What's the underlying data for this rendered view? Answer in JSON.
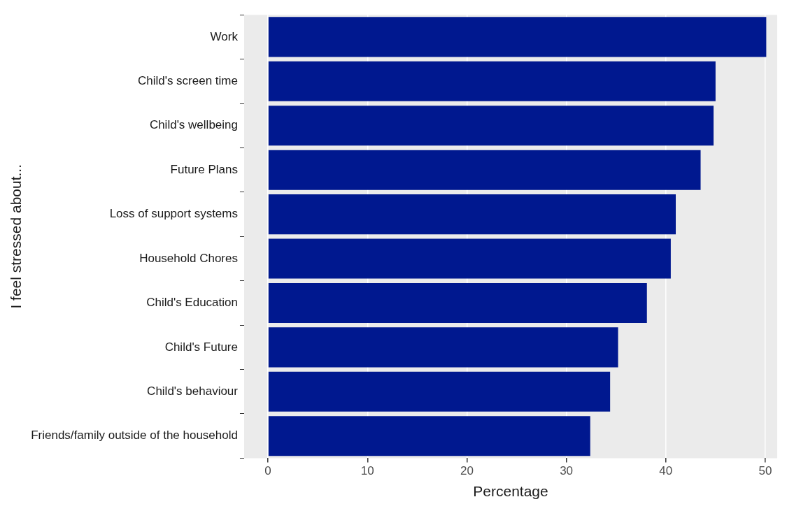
{
  "chart_data": {
    "type": "bar",
    "orientation": "horizontal",
    "xlabel": "Percentage",
    "ylabel": "I feel stressed about...",
    "categories": [
      "Work",
      "Child's screen time",
      "Child's wellbeing",
      "Future Plans",
      "Loss of support systems",
      "Household Chores",
      "Child's Education",
      "Child's Future",
      "Child's behaviour",
      "Friends/family outside of the household"
    ],
    "values": [
      50.1,
      45.0,
      44.8,
      43.5,
      41.0,
      40.5,
      38.1,
      35.2,
      34.4,
      32.4
    ],
    "color": "#00188f",
    "xlim": [
      -2.4,
      51.2
    ],
    "xticks": [
      0,
      10,
      20,
      30,
      40,
      50
    ],
    "grid": "x",
    "legend": false
  }
}
